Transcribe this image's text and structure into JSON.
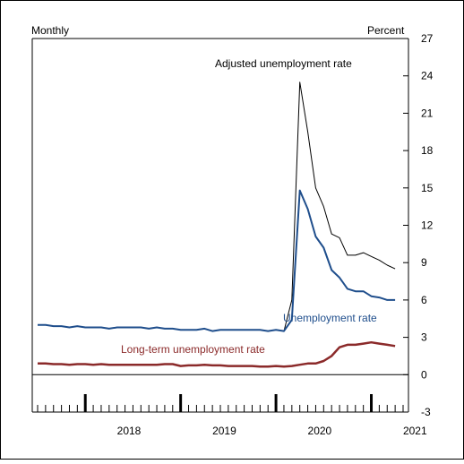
{
  "chart_data": {
    "type": "line",
    "left_label": "Monthly",
    "right_label": "Percent",
    "ylim": [
      -3,
      27
    ],
    "y_ticks": [
      -3,
      0,
      3,
      6,
      9,
      12,
      15,
      18,
      21,
      24,
      27
    ],
    "y_axis_side": "right",
    "grid": false,
    "zero_line": true,
    "x_tick_labels": [
      "2018",
      "2019",
      "2020",
      "2021"
    ],
    "x_start": "2017-07",
    "x_end": "2021-05",
    "series": [
      {
        "name": "Adjusted unemployment rate",
        "color": "#000000",
        "dates": [
          "2017-07",
          "2017-08",
          "2017-09",
          "2017-10",
          "2017-11",
          "2017-12",
          "2018-01",
          "2018-02",
          "2018-03",
          "2018-04",
          "2018-05",
          "2018-06",
          "2018-07",
          "2018-08",
          "2018-09",
          "2018-10",
          "2018-11",
          "2018-12",
          "2019-01",
          "2019-02",
          "2019-03",
          "2019-04",
          "2019-05",
          "2019-06",
          "2019-07",
          "2019-08",
          "2019-09",
          "2019-10",
          "2019-11",
          "2019-12",
          "2020-01",
          "2020-02",
          "2020-03",
          "2020-04",
          "2020-05",
          "2020-06",
          "2020-07",
          "2020-08",
          "2020-09",
          "2020-10",
          "2020-11",
          "2020-12",
          "2021-01",
          "2021-02",
          "2021-03",
          "2021-04"
        ],
        "values": [
          4.0,
          4.0,
          3.9,
          3.9,
          3.8,
          3.9,
          3.8,
          3.8,
          3.8,
          3.7,
          3.8,
          3.8,
          3.8,
          3.8,
          3.7,
          3.8,
          3.7,
          3.7,
          3.6,
          3.6,
          3.6,
          3.7,
          3.5,
          3.6,
          3.6,
          3.6,
          3.6,
          3.6,
          3.6,
          3.5,
          3.6,
          3.5,
          6.0,
          23.5,
          19.5,
          15.0,
          13.5,
          11.3,
          11.0,
          9.6,
          9.6,
          9.8,
          9.5,
          9.2,
          8.8,
          8.5
        ]
      },
      {
        "name": "Unemployment rate",
        "color": "#1f4e8c",
        "dates": [
          "2017-07",
          "2017-08",
          "2017-09",
          "2017-10",
          "2017-11",
          "2017-12",
          "2018-01",
          "2018-02",
          "2018-03",
          "2018-04",
          "2018-05",
          "2018-06",
          "2018-07",
          "2018-08",
          "2018-09",
          "2018-10",
          "2018-11",
          "2018-12",
          "2019-01",
          "2019-02",
          "2019-03",
          "2019-04",
          "2019-05",
          "2019-06",
          "2019-07",
          "2019-08",
          "2019-09",
          "2019-10",
          "2019-11",
          "2019-12",
          "2020-01",
          "2020-02",
          "2020-03",
          "2020-04",
          "2020-05",
          "2020-06",
          "2020-07",
          "2020-08",
          "2020-09",
          "2020-10",
          "2020-11",
          "2020-12",
          "2021-01",
          "2021-02",
          "2021-03",
          "2021-04"
        ],
        "values": [
          4.0,
          4.0,
          3.9,
          3.9,
          3.8,
          3.9,
          3.8,
          3.8,
          3.8,
          3.7,
          3.8,
          3.8,
          3.8,
          3.8,
          3.7,
          3.8,
          3.7,
          3.7,
          3.6,
          3.6,
          3.6,
          3.7,
          3.5,
          3.6,
          3.6,
          3.6,
          3.6,
          3.6,
          3.6,
          3.5,
          3.6,
          3.5,
          4.4,
          14.8,
          13.3,
          11.1,
          10.2,
          8.4,
          7.8,
          6.9,
          6.7,
          6.7,
          6.3,
          6.2,
          6.0,
          6.0
        ]
      },
      {
        "name": "Long-term unemployment rate",
        "color": "#8b2a2a",
        "dates": [
          "2017-07",
          "2017-08",
          "2017-09",
          "2017-10",
          "2017-11",
          "2017-12",
          "2018-01",
          "2018-02",
          "2018-03",
          "2018-04",
          "2018-05",
          "2018-06",
          "2018-07",
          "2018-08",
          "2018-09",
          "2018-10",
          "2018-11",
          "2018-12",
          "2019-01",
          "2019-02",
          "2019-03",
          "2019-04",
          "2019-05",
          "2019-06",
          "2019-07",
          "2019-08",
          "2019-09",
          "2019-10",
          "2019-11",
          "2019-12",
          "2020-01",
          "2020-02",
          "2020-03",
          "2020-04",
          "2020-05",
          "2020-06",
          "2020-07",
          "2020-08",
          "2020-09",
          "2020-10",
          "2020-11",
          "2020-12",
          "2021-01",
          "2021-02",
          "2021-03",
          "2021-04"
        ],
        "values": [
          0.9,
          0.9,
          0.85,
          0.85,
          0.8,
          0.85,
          0.85,
          0.8,
          0.85,
          0.8,
          0.8,
          0.8,
          0.8,
          0.8,
          0.8,
          0.8,
          0.85,
          0.85,
          0.7,
          0.75,
          0.75,
          0.8,
          0.75,
          0.75,
          0.7,
          0.7,
          0.7,
          0.7,
          0.65,
          0.65,
          0.7,
          0.65,
          0.7,
          0.8,
          0.9,
          0.9,
          1.1,
          1.5,
          2.2,
          2.4,
          2.4,
          2.5,
          2.6,
          2.5,
          2.4,
          2.3
        ]
      }
    ]
  }
}
